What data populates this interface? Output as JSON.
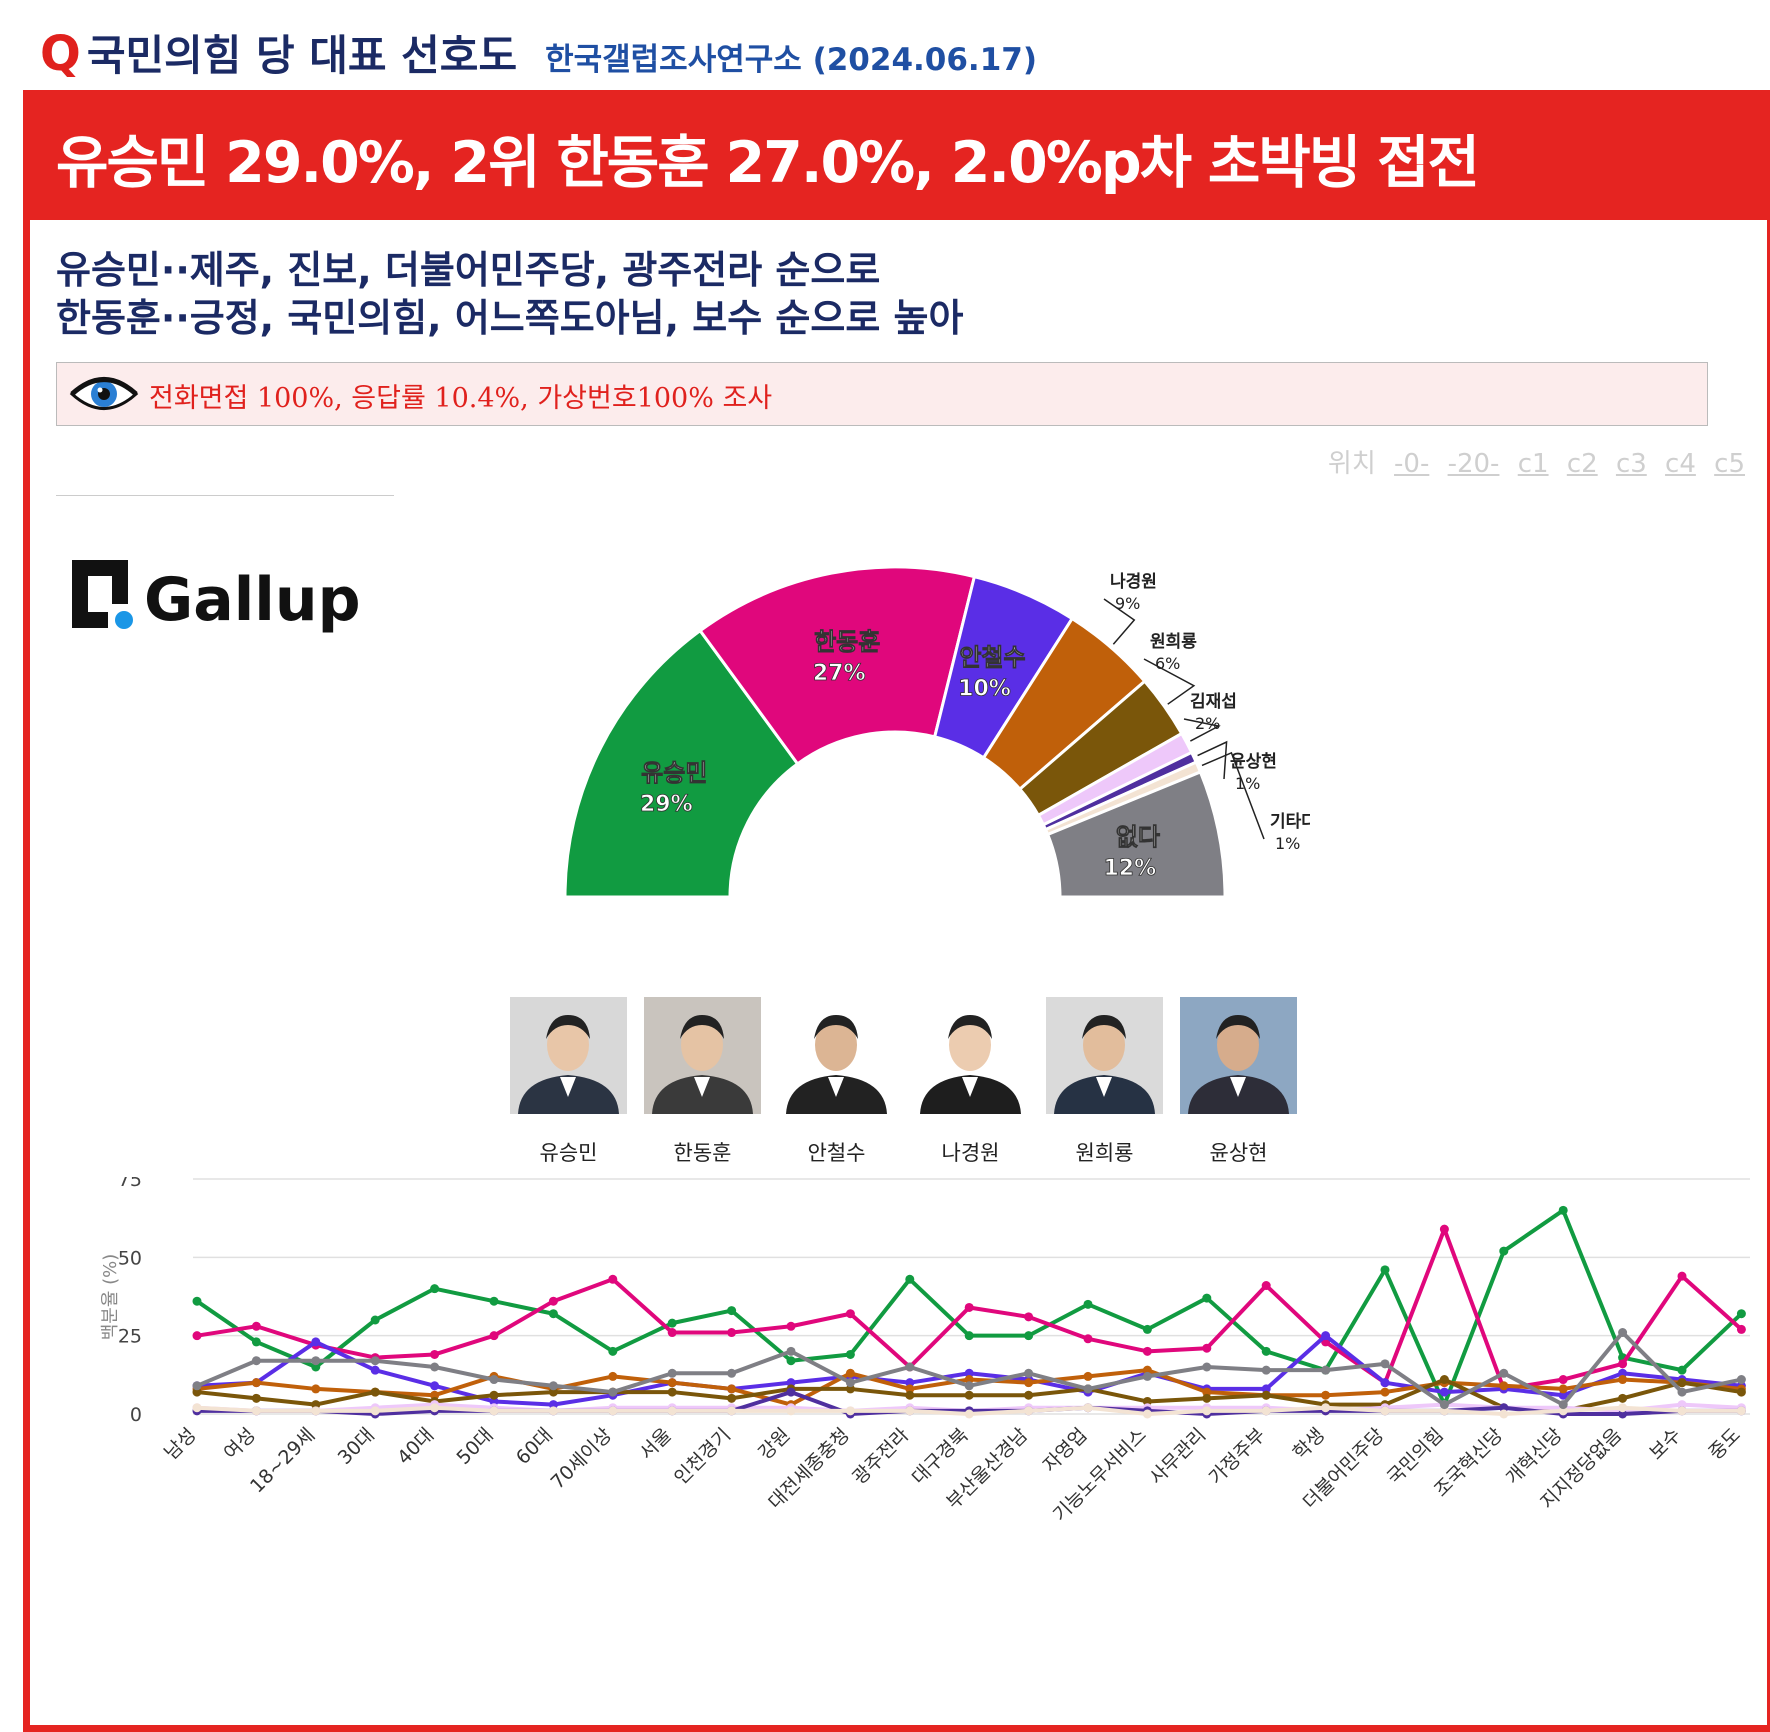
{
  "header": {
    "q_mark": "Q",
    "title": "국민의힘 당 대표 선호도",
    "source": "한국갤럽조사연구소 (2024.06.17)"
  },
  "headline": "유승민 29.0%, 2위 한동훈 27.0%, 2.0%p차 초박빙 접전",
  "subtitle": {
    "line1": "유승민··제주, 진보, 더불어민주당, 광주전라 순으로",
    "line2": "한동훈··긍정, 국민의힘, 어느쪽도아님, 보수 순으로 높아"
  },
  "notice": {
    "icon": "eye-icon",
    "text": "전화면접 100%, 응답률 10.4%, 가상번호100% 조사"
  },
  "position_links": {
    "label": "위치",
    "items": [
      "-0-",
      "-20-",
      "c1",
      "c2",
      "c3",
      "c4",
      "c5"
    ]
  },
  "logo": {
    "text": "Gallup"
  },
  "colors": {
    "accent_red": "#e52421",
    "navy": "#1b2a64",
    "유승민": "#119b41",
    "한동훈": "#e0077c",
    "안철수": "#5a2ee6",
    "나경원": "#c0600a",
    "원희룡": "#7a560a",
    "김재섭": "#eec8fa",
    "윤상현": "#4f2f9f",
    "기타다른인물": "#f3e3d3",
    "없다": "#7f7f85"
  },
  "photos": [
    {
      "name": "유승민"
    },
    {
      "name": "한동훈"
    },
    {
      "name": "안철수"
    },
    {
      "name": "나경원"
    },
    {
      "name": "원희룡"
    },
    {
      "name": "윤상현"
    }
  ],
  "chart_data": [
    {
      "type": "pie",
      "variant": "half-donut",
      "slices": [
        {
          "label": "유승민",
          "value": 29,
          "display": "29%",
          "color": "#119b41"
        },
        {
          "label": "한동훈",
          "value": 27,
          "display": "27%",
          "color": "#e0077c"
        },
        {
          "label": "안철수",
          "value": 10,
          "display": "10%",
          "color": "#5a2ee6"
        },
        {
          "label": "나경원",
          "value": 9,
          "display": "9%",
          "color": "#c0600a"
        },
        {
          "label": "원희룡",
          "value": 6,
          "display": "6%",
          "color": "#7a560a"
        },
        {
          "label": "김재섭",
          "value": 2,
          "display": "2%",
          "color": "#eec8fa"
        },
        {
          "label": "윤상현",
          "value": 1,
          "display": "1%",
          "color": "#4f2f9f"
        },
        {
          "label": "기타다른인물",
          "value": 1,
          "display": "1%",
          "color": "#f3e3d3"
        },
        {
          "label": "없다",
          "value": 12,
          "display": "12%",
          "color": "#7f7f85"
        }
      ]
    },
    {
      "type": "line",
      "ylabel": "백분율 (%)",
      "ylim": [
        0,
        75
      ],
      "yticks": [
        0,
        25,
        50,
        75
      ],
      "grid": true,
      "categories": [
        "남성",
        "여성",
        "18~29세",
        "30대",
        "40대",
        "50대",
        "60대",
        "70세이상",
        "서울",
        "인천경기",
        "강원",
        "대전세종충청",
        "광주전라",
        "대구경북",
        "부산울산경남",
        "자영업",
        "기능노무서비스",
        "사무관리",
        "가정주부",
        "학생",
        "더불어민주당",
        "국민의힘",
        "조국혁신당",
        "개혁신당",
        "지지정당없음",
        "보수",
        "중도"
      ],
      "series": [
        {
          "color": "#119b41",
          "values": [
            36,
            23,
            15,
            30,
            40,
            36,
            32,
            20,
            29,
            33,
            17,
            19,
            43,
            25,
            25,
            35,
            27,
            37,
            20,
            14,
            46,
            3,
            52,
            65,
            18,
            14,
            32
          ]
        },
        {
          "color": "#e0077c",
          "values": [
            25,
            28,
            22,
            18,
            19,
            25,
            36,
            43,
            26,
            26,
            28,
            32,
            15,
            34,
            31,
            24,
            20,
            21,
            41,
            23,
            10,
            59,
            8,
            11,
            16,
            44,
            27
          ]
        },
        {
          "color": "#5a2ee6",
          "values": [
            9,
            10,
            23,
            14,
            9,
            4,
            3,
            6,
            10,
            8,
            10,
            12,
            10,
            13,
            11,
            7,
            13,
            8,
            8,
            25,
            10,
            7,
            8,
            6,
            13,
            11,
            9
          ]
        },
        {
          "color": "#c0600a",
          "values": [
            8,
            10,
            8,
            7,
            6,
            12,
            8,
            12,
            10,
            8,
            3,
            13,
            8,
            11,
            10,
            12,
            14,
            7,
            6,
            6,
            7,
            10,
            9,
            8,
            11,
            10,
            8
          ]
        },
        {
          "color": "#7a560a",
          "values": [
            7,
            5,
            3,
            7,
            4,
            6,
            7,
            7,
            7,
            5,
            8,
            8,
            6,
            6,
            6,
            8,
            4,
            5,
            6,
            3,
            3,
            11,
            2,
            1,
            5,
            10,
            7
          ]
        },
        {
          "color": "#eec8fa",
          "values": [
            2,
            1,
            1,
            2,
            3,
            2,
            1,
            2,
            2,
            2,
            2,
            1,
            2,
            1,
            2,
            2,
            2,
            2,
            2,
            1,
            2,
            3,
            2,
            2,
            1,
            3,
            2
          ]
        },
        {
          "color": "#4f2f9f",
          "values": [
            1,
            1,
            1,
            0,
            1,
            1,
            1,
            1,
            1,
            1,
            7,
            0,
            1,
            1,
            1,
            2,
            1,
            0,
            1,
            1,
            1,
            1,
            2,
            0,
            0,
            1,
            1
          ]
        },
        {
          "color": "#f3e3d3",
          "values": [
            2,
            1,
            1,
            1,
            2,
            1,
            1,
            1,
            1,
            1,
            1,
            1,
            1,
            0,
            1,
            2,
            0,
            1,
            1,
            2,
            1,
            1,
            0,
            1,
            2,
            1,
            1
          ]
        },
        {
          "color": "#7f7f85",
          "values": [
            9,
            17,
            17,
            17,
            15,
            11,
            9,
            7,
            13,
            13,
            20,
            10,
            15,
            9,
            13,
            8,
            12,
            15,
            14,
            14,
            16,
            3,
            13,
            3,
            26,
            7,
            11
          ]
        }
      ]
    }
  ]
}
